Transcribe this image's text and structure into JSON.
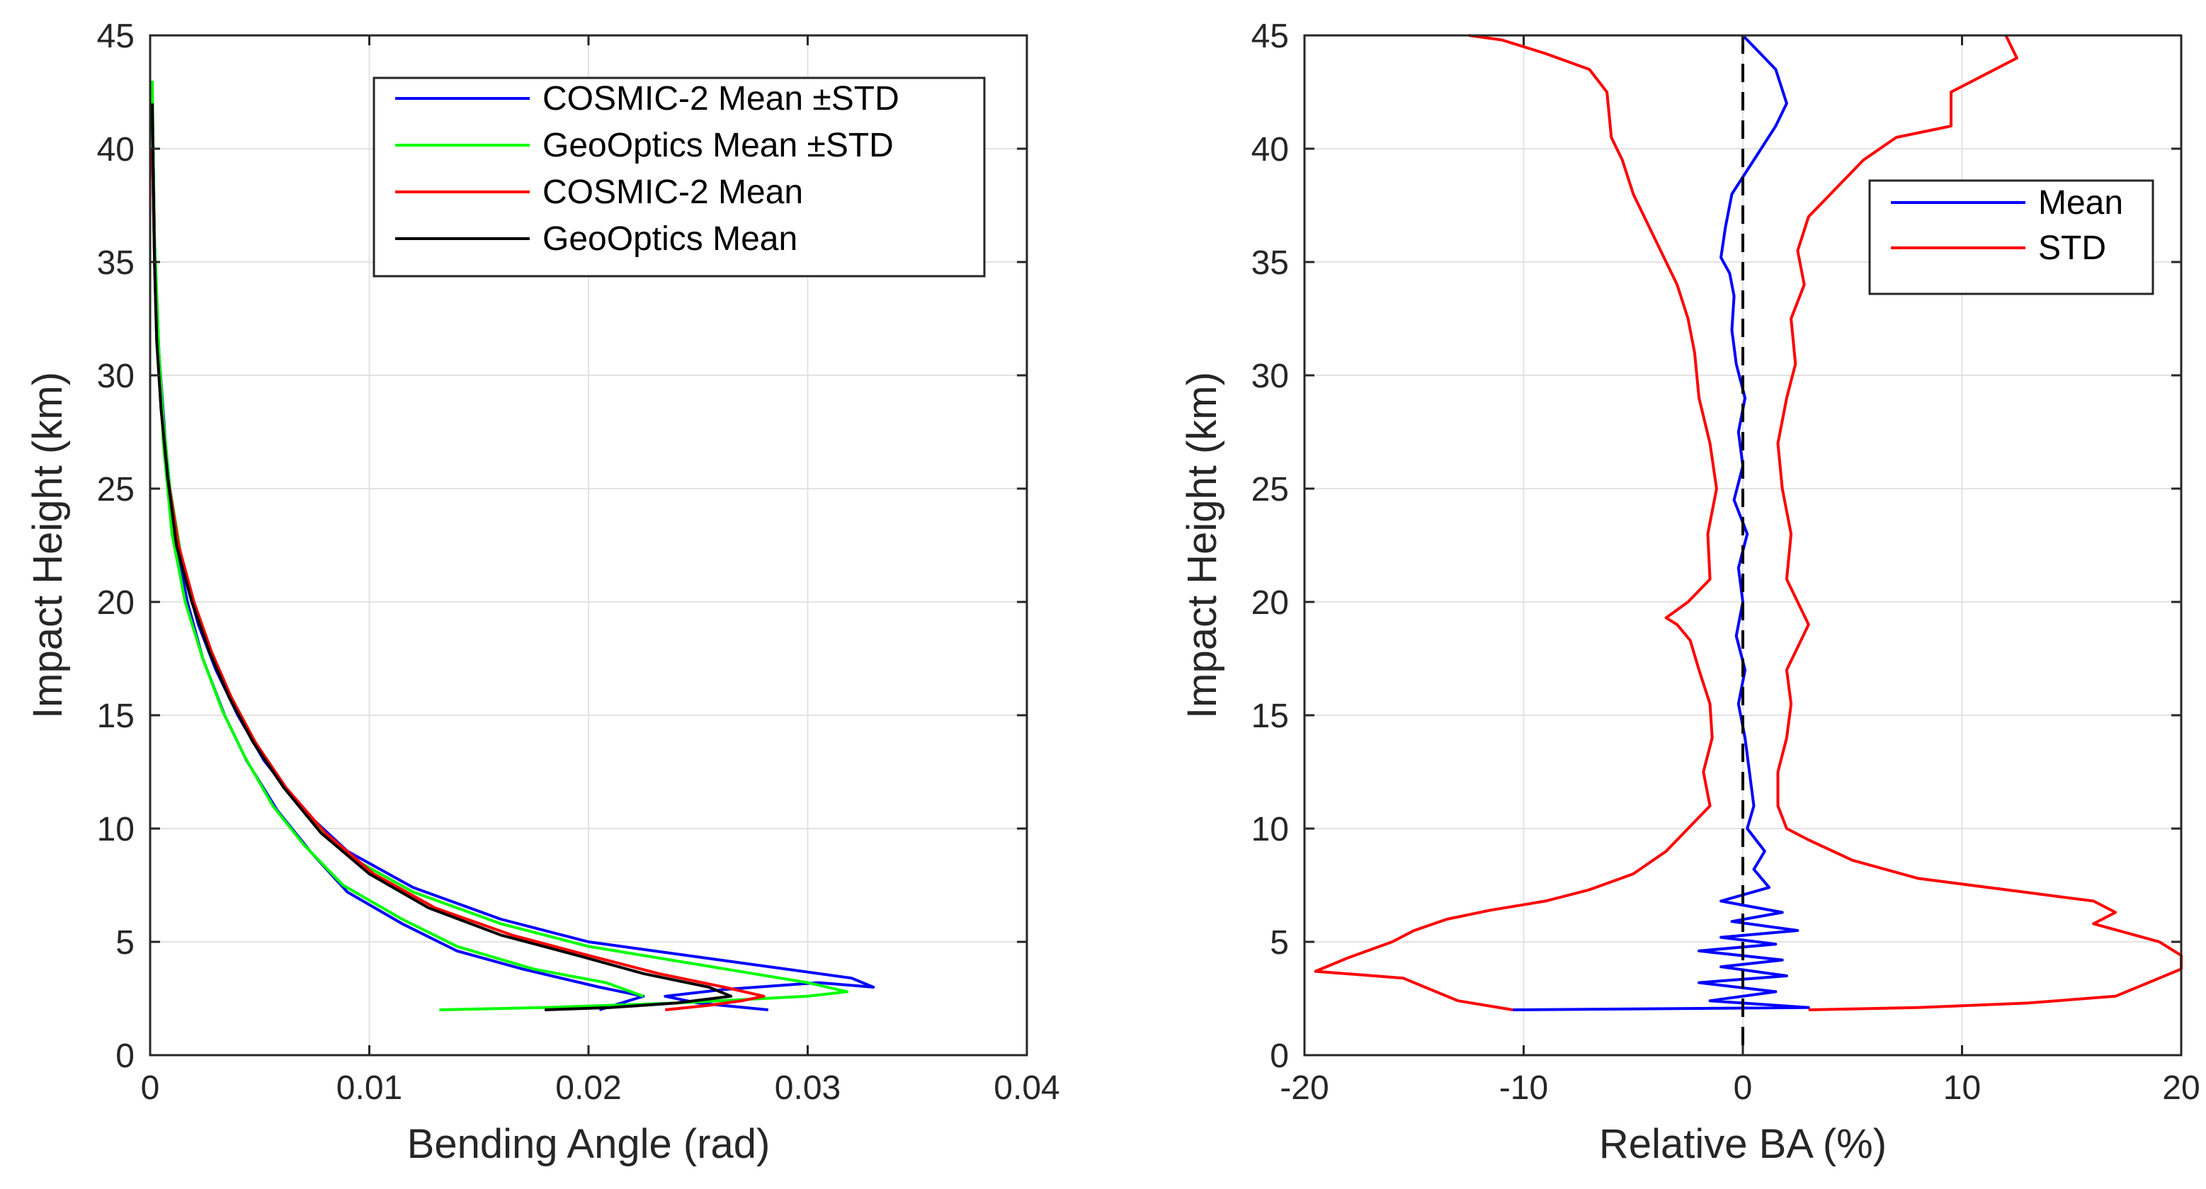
{
  "chart_data": [
    {
      "type": "line",
      "xlabel": "Bending Angle (rad)",
      "ylabel": "Impact Height (km)",
      "xlim": [
        0,
        0.04
      ],
      "ylim": [
        0,
        45
      ],
      "xticks": [
        0,
        0.01,
        0.02,
        0.03,
        0.04
      ],
      "xtick_labels": [
        "0",
        "0.01",
        "0.02",
        "0.03",
        "0.04"
      ],
      "yticks": [
        0,
        5,
        10,
        15,
        20,
        25,
        30,
        35,
        40,
        45
      ],
      "ytick_labels": [
        "0",
        "5",
        "10",
        "15",
        "20",
        "25",
        "30",
        "35",
        "40",
        "45"
      ],
      "grid": true,
      "legend_position": "top-right",
      "series": [
        {
          "name": "COSMIC-2 Mean ±STD",
          "color": "#0000ff",
          "lines": [
            {
              "x": [
                0.0282,
                0.025,
                0.0235,
                0.0262,
                0.0305,
                0.033,
                0.032,
                0.026,
                0.02,
                0.016,
                0.012,
                0.009,
                0.007,
                0.0052,
                0.004,
                0.003,
                0.0022,
                0.0015,
                0.0009,
                0.0006,
                0.0004,
                0.0002,
                0.0001
              ],
              "y": [
                2.0,
                2.3,
                2.6,
                2.9,
                3.2,
                3.0,
                3.4,
                4.2,
                5.0,
                6.0,
                7.4,
                9.0,
                10.8,
                13.0,
                15.0,
                17.0,
                19.0,
                21.5,
                25.0,
                28.0,
                31.0,
                35.0,
                40.0
              ]
            },
            {
              "x": [
                0.0205,
                0.0215,
                0.0225,
                0.0205,
                0.017,
                0.014,
                0.0115,
                0.009,
                0.0073,
                0.0058,
                0.0044,
                0.0034,
                0.0024,
                0.0017,
                0.0011,
                0.0007,
                0.0004,
                0.0002,
                0.0001
              ],
              "y": [
                2.0,
                2.3,
                2.6,
                3.0,
                3.8,
                4.6,
                5.8,
                7.2,
                9.0,
                10.8,
                13.0,
                15.0,
                17.5,
                20.0,
                23.0,
                27.0,
                31.0,
                36.0,
                42.0
              ]
            }
          ]
        },
        {
          "name": "GeoOptics Mean ±STD",
          "color": "#00ff00",
          "lines": [
            {
              "x": [
                0.0132,
                0.018,
                0.024,
                0.03,
                0.0318,
                0.03,
                0.025,
                0.02,
                0.016,
                0.012,
                0.0092,
                0.0072,
                0.0054,
                0.0041,
                0.0031,
                0.0023,
                0.0015,
                0.0009,
                0.0006,
                0.0004,
                0.0002,
                0.0001
              ],
              "y": [
                2.0,
                2.1,
                2.3,
                2.6,
                2.8,
                3.2,
                4.0,
                4.8,
                5.8,
                7.2,
                8.7,
                10.5,
                12.8,
                15.0,
                17.0,
                19.0,
                21.5,
                25.0,
                28.0,
                31.0,
                35.0,
                43.0
              ]
            },
            {
              "x": [
                0.0225,
                0.0208,
                0.0175,
                0.014,
                0.0115,
                0.0088,
                0.007,
                0.0056,
                0.0043,
                0.0033,
                0.0024,
                0.0016,
                0.001,
                0.0006,
                0.0004,
                0.0002,
                0.0001
              ],
              "y": [
                2.6,
                3.2,
                3.8,
                4.8,
                6.0,
                7.5,
                9.3,
                11.0,
                13.2,
                15.2,
                17.5,
                20.0,
                23.0,
                27.0,
                31.0,
                36.0,
                42.0
              ]
            }
          ]
        },
        {
          "name": "COSMIC-2 Mean",
          "color": "#ff0000",
          "lines": [
            {
              "x": [
                0.0235,
                0.0255,
                0.027,
                0.028,
                0.0262,
                0.0232,
                0.02,
                0.0165,
                0.013,
                0.0102,
                0.008,
                0.0062,
                0.0048,
                0.0037,
                0.0028,
                0.002,
                0.0013,
                0.0008,
                0.0005,
                0.0003,
                0.0002,
                0.0001
              ],
              "y": [
                2.0,
                2.2,
                2.4,
                2.6,
                3.0,
                3.6,
                4.4,
                5.3,
                6.5,
                8.0,
                9.8,
                11.8,
                13.8,
                15.8,
                17.8,
                20.0,
                22.5,
                25.5,
                28.5,
                31.5,
                35.0,
                40.0
              ]
            }
          ]
        },
        {
          "name": "GeoOptics Mean",
          "color": "#000000",
          "lines": [
            {
              "x": [
                0.018,
                0.021,
                0.024,
                0.0265,
                0.0255,
                0.0225,
                0.0195,
                0.016,
                0.0127,
                0.01,
                0.0078,
                0.0061,
                0.0047,
                0.0036,
                0.0027,
                0.0019,
                0.0012,
                0.0008,
                0.0005,
                0.0003,
                0.0002,
                0.0001
              ],
              "y": [
                2.0,
                2.1,
                2.3,
                2.6,
                3.0,
                3.6,
                4.4,
                5.3,
                6.5,
                8.0,
                9.8,
                11.8,
                13.8,
                15.8,
                17.8,
                20.0,
                22.5,
                25.5,
                28.5,
                31.5,
                35.0,
                42.0
              ]
            }
          ]
        }
      ]
    },
    {
      "type": "line",
      "xlabel": "Relative BA (%)",
      "ylabel": "Impact Height (km)",
      "xlim": [
        -20,
        20
      ],
      "ylim": [
        0,
        45
      ],
      "xticks": [
        -20,
        -10,
        0,
        10,
        20
      ],
      "xtick_labels": [
        "-20",
        "-10",
        "0",
        "10",
        "20"
      ],
      "yticks": [
        0,
        5,
        10,
        15,
        20,
        25,
        30,
        35,
        40,
        45
      ],
      "ytick_labels": [
        "0",
        "5",
        "10",
        "15",
        "20",
        "25",
        "30",
        "35",
        "40",
        "45"
      ],
      "grid": true,
      "legend_position": "top-right",
      "reference_line": {
        "x": 0,
        "style": "dashed",
        "color": "#000000"
      },
      "series": [
        {
          "name": "Mean",
          "color": "#0000ff",
          "lines": [
            {
              "x": [
                -10.5,
                3.0,
                -1.5,
                1.5,
                -2.0,
                2.0,
                -1.0,
                1.8,
                -2.0,
                1.5,
                -1.0,
                2.5,
                -0.5,
                1.8,
                -1.0,
                1.2,
                0.5,
                1.0,
                0.2,
                0.5,
                0.3,
                0.1,
                -0.2,
                0.1,
                -0.3,
                0.0,
                -0.2,
                0.2,
                -0.4,
                0.0,
                -0.2,
                0.1,
                -0.3,
                -0.5,
                -0.4,
                -0.6,
                -1.0,
                -0.8,
                -0.5,
                0.5,
                1.5,
                2.0,
                1.5,
                0.5,
                0.0
              ],
              "y": [
                2.0,
                2.1,
                2.4,
                2.8,
                3.2,
                3.5,
                3.9,
                4.2,
                4.6,
                4.9,
                5.2,
                5.5,
                5.9,
                6.3,
                6.8,
                7.4,
                8.2,
                9.0,
                10.0,
                11.0,
                12.5,
                14.0,
                15.5,
                17.0,
                18.5,
                20.0,
                21.5,
                23.0,
                24.5,
                26.0,
                27.5,
                29.0,
                30.5,
                32.0,
                33.5,
                34.5,
                35.2,
                36.5,
                38.0,
                39.5,
                41.0,
                42.0,
                43.5,
                44.5,
                45.0
              ]
            }
          ]
        },
        {
          "name": "STD",
          "color": "#ff0000",
          "lines": [
            {
              "x": [
                -10.5,
                -13.0,
                -14.5,
                -15.5,
                -19.5,
                -18.0,
                -16.0,
                -15.0,
                -13.5,
                -11.5,
                -9.0,
                -7.0,
                -5.0,
                -3.5,
                -2.5,
                -1.5,
                -1.8,
                -1.4,
                -1.5,
                -2.0,
                -2.4,
                -3.0,
                -3.5,
                -2.5,
                -1.5,
                -1.6,
                -1.2,
                -1.5,
                -2.0,
                -2.2,
                -2.5,
                -3.0,
                -4.0,
                -5.0,
                -5.5,
                -6.0,
                -6.2,
                -7.0,
                -9.0,
                -11.0,
                -12.5
              ],
              "y": [
                2.0,
                2.4,
                3.0,
                3.4,
                3.7,
                4.3,
                5.0,
                5.5,
                6.0,
                6.4,
                6.8,
                7.3,
                8.0,
                9.0,
                10.0,
                11.0,
                12.5,
                14.0,
                15.5,
                17.0,
                18.3,
                19.0,
                19.3,
                20.0,
                21.0,
                23.0,
                25.0,
                27.0,
                29.0,
                31.0,
                32.5,
                34.0,
                36.0,
                38.0,
                39.5,
                40.5,
                42.5,
                43.5,
                44.2,
                44.8,
                45.0
              ]
            },
            {
              "x": [
                3.0,
                8.0,
                13.0,
                17.0,
                18.5,
                20.0,
                20.0,
                19.0,
                16.0,
                17.0,
                16.0,
                12.0,
                8.0,
                5.0,
                3.0,
                2.0,
                1.6,
                1.6,
                2.0,
                2.2,
                2.0,
                2.5,
                3.0,
                2.5,
                2.0,
                2.2,
                1.8,
                1.6,
                2.0,
                2.4,
                2.2,
                2.8,
                2.5,
                3.0,
                4.0,
                5.5,
                7.0,
                9.5,
                9.5,
                12.5,
                12.0
              ],
              "y": [
                2.0,
                2.1,
                2.3,
                2.6,
                3.2,
                3.8,
                4.4,
                5.0,
                5.8,
                6.3,
                6.8,
                7.3,
                7.8,
                8.6,
                9.5,
                10.0,
                11.0,
                12.5,
                14.0,
                15.5,
                17.0,
                18.0,
                19.0,
                20.0,
                21.0,
                23.0,
                25.0,
                27.0,
                29.0,
                30.5,
                32.5,
                34.0,
                35.5,
                37.0,
                38.0,
                39.5,
                40.5,
                41.0,
                42.5,
                44.0,
                45.0
              ]
            }
          ]
        }
      ]
    }
  ]
}
